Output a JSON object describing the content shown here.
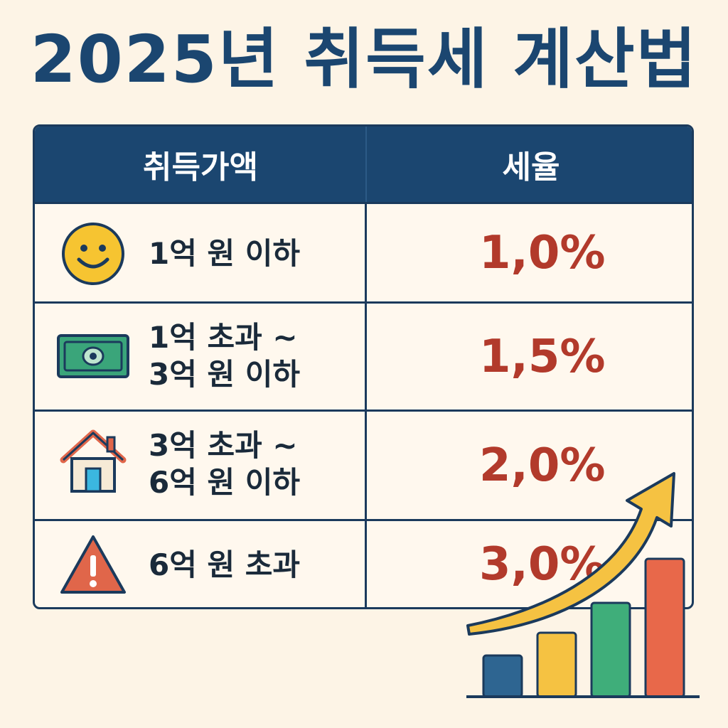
{
  "title": "2025년 취득세 계산법",
  "table": {
    "header_amount": "취득가액",
    "header_rate": "세율",
    "rows": [
      {
        "icon": "smiley-icon",
        "amount_line1": "1억 원 이하",
        "amount_line2": "",
        "rate": "1,0%"
      },
      {
        "icon": "banknote-icon",
        "amount_line1": "1억 초과 ~",
        "amount_line2": "3억 원 이하",
        "rate": "1,5%"
      },
      {
        "icon": "house-icon",
        "amount_line1": "3억 초과 ~",
        "amount_line2": "6억 원 이하",
        "rate": "2,0%"
      },
      {
        "icon": "warning-icon",
        "amount_line1": "6억 원 초과",
        "amount_line2": "",
        "rate": "3,0%"
      }
    ]
  },
  "colors": {
    "background": "#fdf4e6",
    "header": "#1b4670",
    "rate_text": "#b23a2b",
    "arrow": "#f5c242",
    "bars": [
      "#2e6591",
      "#f5c242",
      "#3fae7a",
      "#e8684a"
    ]
  },
  "decoration": {
    "icon": "rising-bar-chart-arrow-icon"
  }
}
